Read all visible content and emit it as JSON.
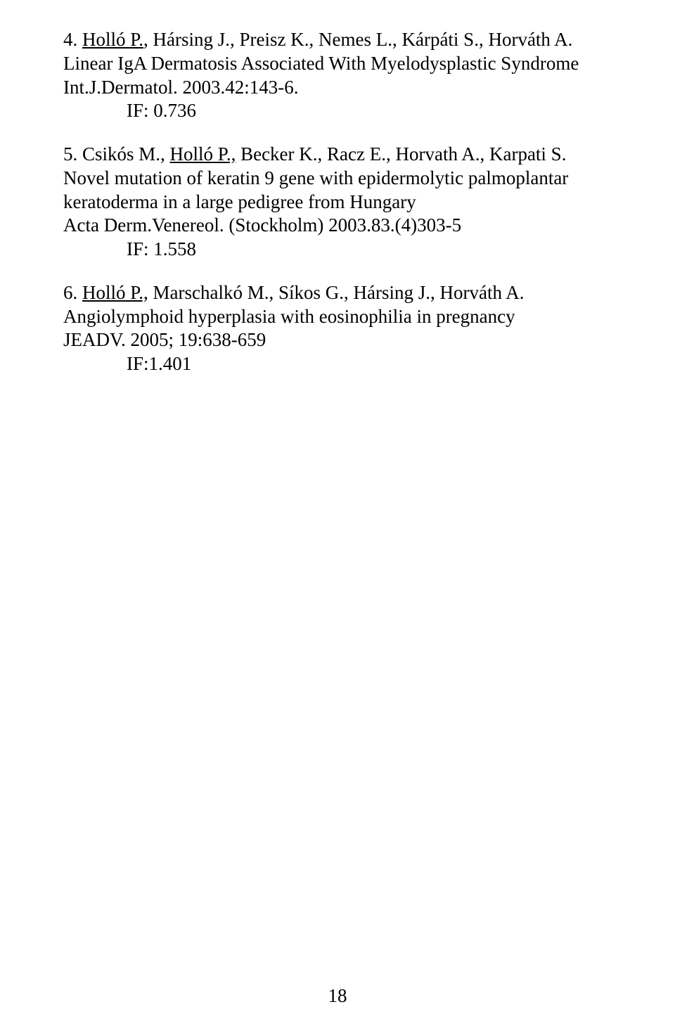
{
  "entries": [
    {
      "num": "4.  ",
      "author_underline": "Holló P.",
      "rest_line1": ", Hársing J., Preisz K., Nemes L., Kárpáti S., Horváth A.",
      "line2": "Linear IgA Dermatosis Associated With Myelodysplastic Syndrome",
      "line3": "Int.J.Dermatol. 2003.42:143-6.",
      "if_label": "IF: 0.736"
    },
    {
      "num": "5.  Csikós M., ",
      "author_underline": "Holló P.,",
      "rest_line1": " Becker K., Racz E., Horvath A., Karpati S.  Novel mutation of keratin 9 gene with epidermolytic palmoplantar keratoderma in a large pedigree from Hungary",
      "line2": "Acta Derm.Venereol. (Stockholm) 2003.83.(4)303-5",
      "if_label": "IF: 1.558"
    },
    {
      "num": "6.  ",
      "author_underline": "Holló P.,",
      "rest_line1": " Marschalkó M., Síkos G., Hársing J., Horváth A.",
      "line2": "Angiolymphoid hyperplasia with eosinophilia in pregnancy",
      "line3": "JEADV. 2005; 19:638-659",
      "if_label": "IF:1.401"
    }
  ],
  "page_number": "18"
}
